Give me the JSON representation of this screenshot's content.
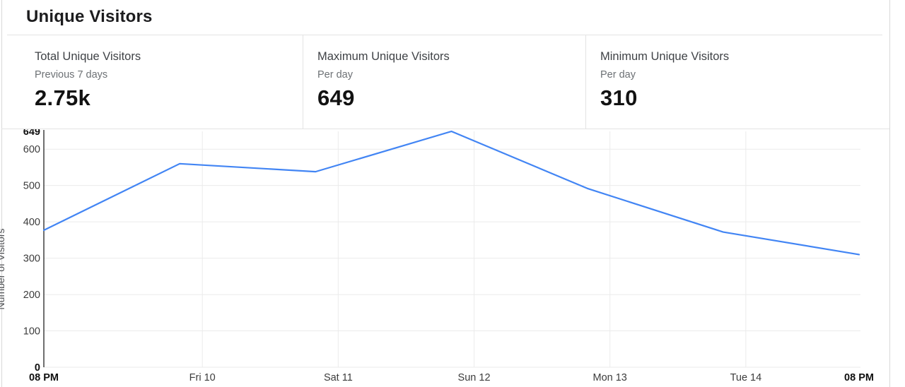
{
  "panel": {
    "title": "Unique Visitors"
  },
  "stats": [
    {
      "title": "Total Unique Visitors",
      "subtitle": "Previous 7 days",
      "value": "2.75k"
    },
    {
      "title": "Maximum Unique Visitors",
      "subtitle": "Per day",
      "value": "649"
    },
    {
      "title": "Minimum Unique Visitors",
      "subtitle": "Per day",
      "value": "310"
    }
  ],
  "chart_data": {
    "type": "line",
    "title": "Unique Visitors",
    "xlabel": "",
    "ylabel": "Number of Visitors",
    "ylim": [
      0,
      649
    ],
    "xlim": [
      0,
      6
    ],
    "grid": true,
    "legend": "none",
    "line_color": "#4285f4",
    "grid_color": "#ebebeb",
    "axis_color": "#222222",
    "tick_color": "#3c3c3c",
    "tick_bold_color": "#101010",
    "y_ticks": [
      {
        "value": 649,
        "bold": true
      },
      {
        "value": 600,
        "bold": false
      },
      {
        "value": 500,
        "bold": false
      },
      {
        "value": 400,
        "bold": false
      },
      {
        "value": 300,
        "bold": false
      },
      {
        "value": 200,
        "bold": false
      },
      {
        "value": 100,
        "bold": false
      },
      {
        "value": 0,
        "bold": true
      }
    ],
    "x_ticks": [
      {
        "label": "08 PM",
        "t": 0,
        "bold": true
      },
      {
        "label": "Fri 10",
        "t": 1.1667,
        "bold": false
      },
      {
        "label": "Sat 11",
        "t": 2.1667,
        "bold": false
      },
      {
        "label": "Sun 12",
        "t": 3.1667,
        "bold": false
      },
      {
        "label": "Mon 13",
        "t": 4.1667,
        "bold": false
      },
      {
        "label": "Tue 14",
        "t": 5.1667,
        "bold": false
      },
      {
        "label": "08 PM",
        "t": 6,
        "bold": true
      }
    ],
    "series": [
      {
        "name": "Unique Visitors",
        "t": [
          0,
          1,
          2,
          3,
          4,
          5,
          6
        ],
        "values": [
          377,
          560,
          538,
          649,
          492,
          372,
          310
        ]
      }
    ]
  }
}
